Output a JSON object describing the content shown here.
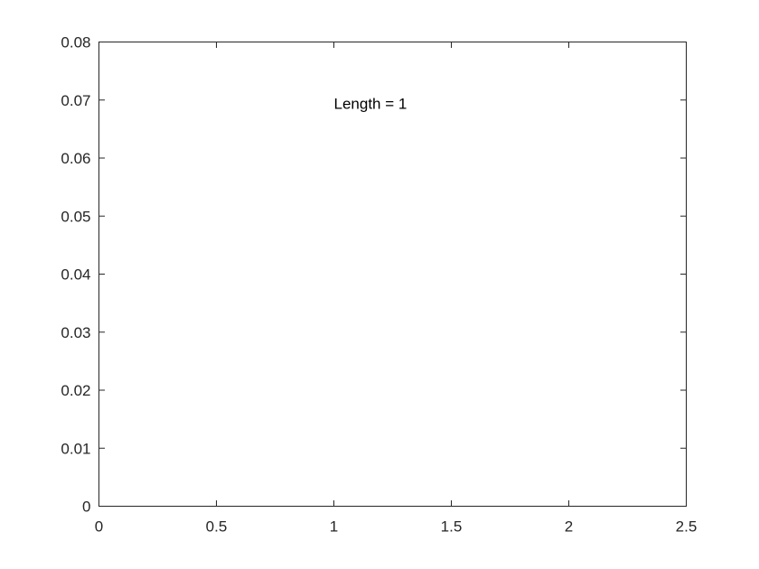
{
  "chart_data": {
    "type": "line",
    "title": "",
    "xlabel": "",
    "ylabel": "",
    "xlim": [
      0,
      2.5
    ],
    "ylim": [
      0,
      0.08
    ],
    "x_ticks": [
      0,
      0.5,
      1,
      1.5,
      2,
      2.5
    ],
    "x_tick_labels": [
      "0",
      "0.5",
      "1",
      "1.5",
      "2",
      "2.5"
    ],
    "y_ticks": [
      0,
      0.01,
      0.02,
      0.03,
      0.04,
      0.05,
      0.06,
      0.07,
      0.08
    ],
    "y_tick_labels": [
      "0",
      "0.01",
      "0.02",
      "0.03",
      "0.04",
      "0.05",
      "0.06",
      "0.07",
      "0.08"
    ],
    "grid": false,
    "box": true,
    "series": [],
    "annotations": [
      {
        "text": "Length = 1",
        "x": 1.0,
        "y": 0.0685
      }
    ],
    "colors": {
      "axis": "#262626",
      "background": "#ffffff"
    }
  }
}
